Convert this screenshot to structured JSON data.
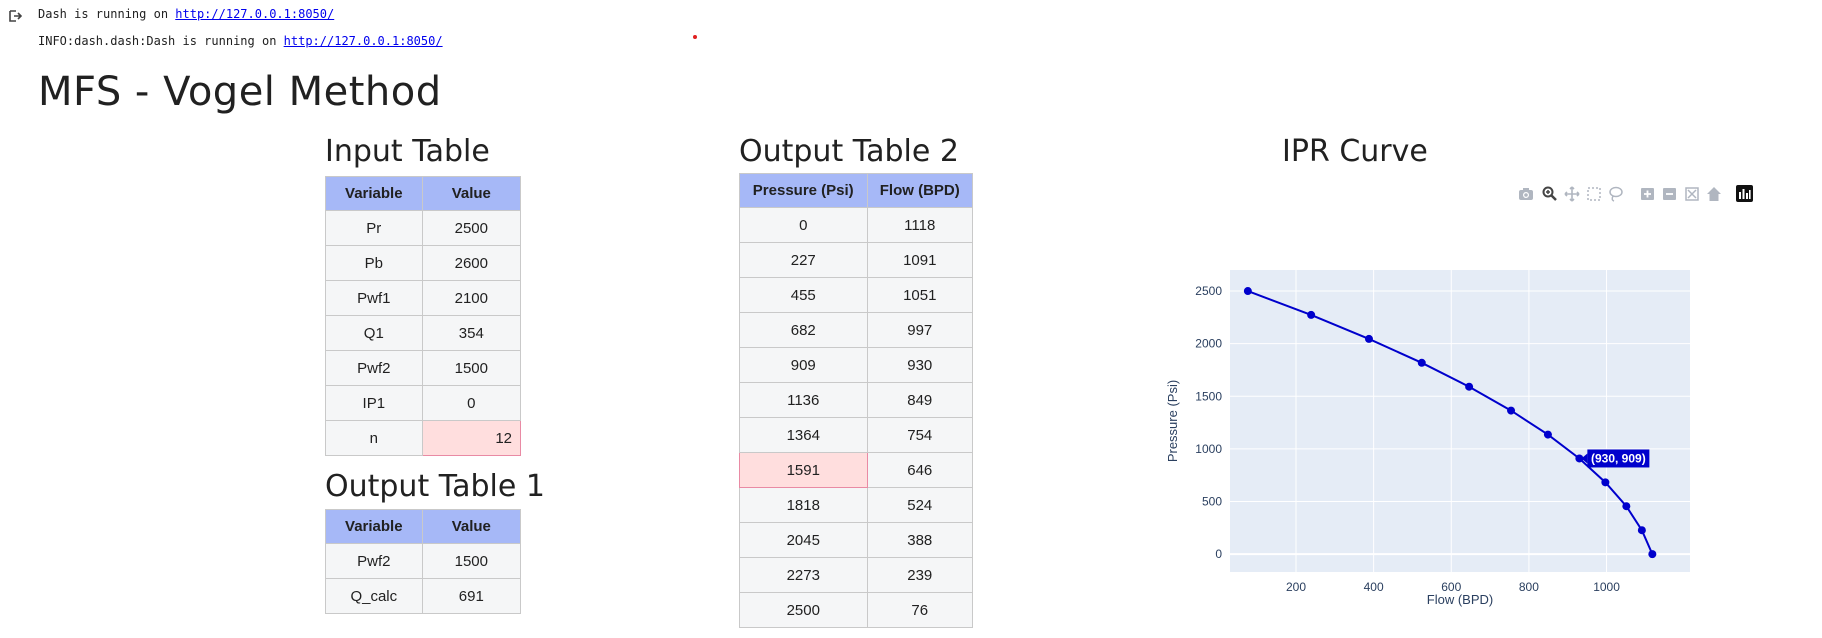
{
  "log": {
    "line1_prefix": "Dash is running on ",
    "line1_link": "http://127.0.0.1:8050/",
    "line2_prefix": "INFO:dash.dash:Dash is running on ",
    "line2_link": "http://127.0.0.1:8050/"
  },
  "page": {
    "title": "MFS - Vogel Method"
  },
  "input_table": {
    "title": "Input Table",
    "headers": [
      "Variable",
      "Value"
    ],
    "rows": [
      [
        "Pr",
        "2500"
      ],
      [
        "Pb",
        "2600"
      ],
      [
        "Pwf1",
        "2100"
      ],
      [
        "Q1",
        "354"
      ],
      [
        "Pwf2",
        "1500"
      ],
      [
        "IP1",
        "0"
      ],
      [
        "n",
        "12"
      ]
    ],
    "selected_row": 6
  },
  "output_table_1": {
    "title": "Output Table 1",
    "headers": [
      "Variable",
      "Value"
    ],
    "rows": [
      [
        "Pwf2",
        "1500"
      ],
      [
        "Q_calc",
        "691"
      ]
    ]
  },
  "output_table_2": {
    "title": "Output Table 2",
    "headers": [
      "Pressure (Psi)",
      "Flow (BPD)"
    ],
    "rows": [
      [
        "0",
        "1118"
      ],
      [
        "227",
        "1091"
      ],
      [
        "455",
        "1051"
      ],
      [
        "682",
        "997"
      ],
      [
        "909",
        "930"
      ],
      [
        "1136",
        "849"
      ],
      [
        "1364",
        "754"
      ],
      [
        "1591",
        "646"
      ],
      [
        "1818",
        "524"
      ],
      [
        "2045",
        "388"
      ],
      [
        "2273",
        "239"
      ],
      [
        "2500",
        "76"
      ]
    ],
    "selected_row": 7
  },
  "ipr_curve": {
    "title": "IPR Curve",
    "modebar_icons": [
      "camera-icon",
      "zoom-icon",
      "pan-icon",
      "box-select-icon",
      "lasso-icon",
      "zoom-in-icon",
      "zoom-out-icon",
      "autoscale-icon",
      "reset-axes-icon",
      "plotly-logo-icon"
    ],
    "hover_label": "(930, 909)",
    "line_color": "#0000cc"
  },
  "chart_data": {
    "type": "line",
    "x": [
      76,
      239,
      388,
      524,
      646,
      754,
      849,
      930,
      997,
      1051,
      1091,
      1118
    ],
    "y": [
      2500,
      2273,
      2045,
      1818,
      1591,
      1364,
      1136,
      909,
      682,
      455,
      227,
      0
    ],
    "xlabel": "Flow (BPD)",
    "ylabel": "Pressure (Psi)",
    "xlim": [
      30,
      1215
    ],
    "ylim": [
      -170,
      2700
    ],
    "xticks": [
      200,
      400,
      600,
      800,
      1000
    ],
    "yticks": [
      0,
      500,
      1000,
      1500,
      2000,
      2500
    ],
    "grid": true,
    "background": "#e5ecf6"
  }
}
